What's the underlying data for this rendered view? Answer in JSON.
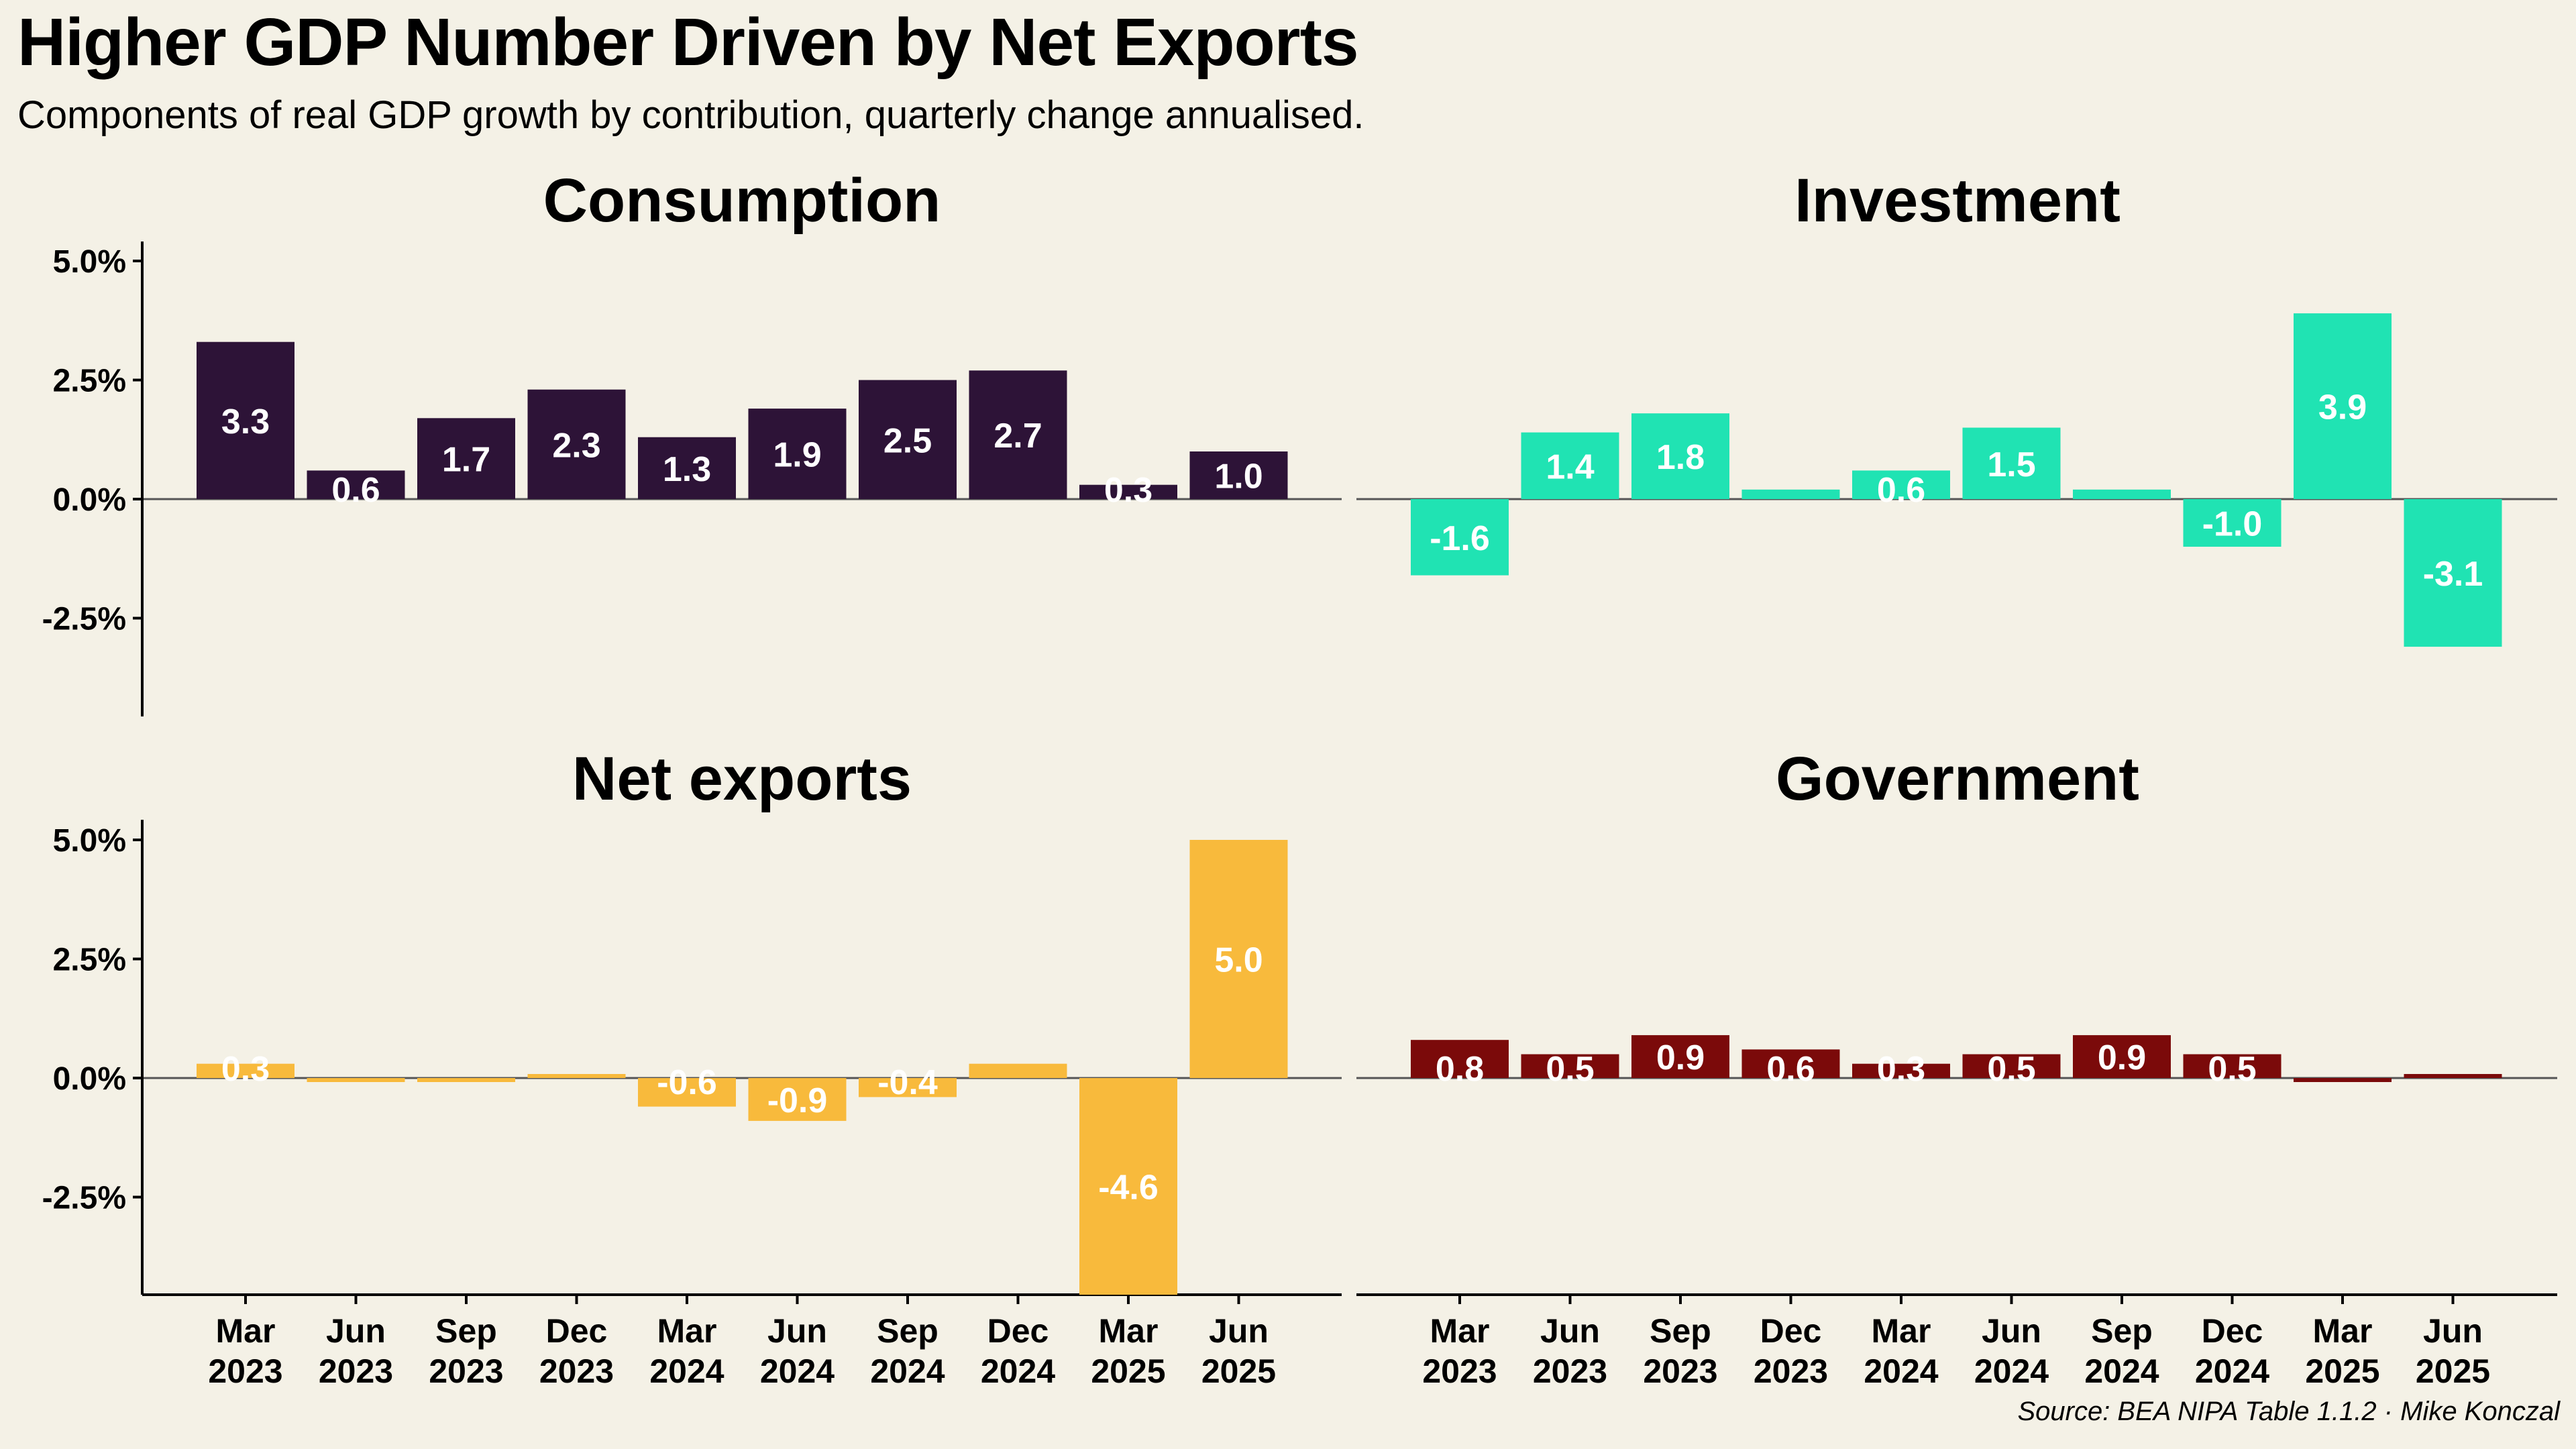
{
  "title": "Higher GDP Number Driven by Net Exports",
  "subtitle": "Components of real GDP growth by contribution, quarterly change annualised.",
  "source": "Source: BEA NIPA Table 1.1.2 · Mike Konczal",
  "colors": {
    "background": "#f4f1e6",
    "consumption": "#2d1337",
    "investment": "#20e3b3",
    "net_exports": "#f8ba3c",
    "government": "#7b0a0a"
  },
  "chart_data": [
    {
      "type": "bar",
      "title": "Consumption",
      "categories": [
        "Mar 2023",
        "Jun 2023",
        "Sep 2023",
        "Dec 2023",
        "Mar 2024",
        "Jun 2024",
        "Sep 2024",
        "Dec 2024",
        "Mar 2025",
        "Jun 2025"
      ],
      "values": [
        3.3,
        0.6,
        1.7,
        2.3,
        1.3,
        1.9,
        2.5,
        2.7,
        0.3,
        1.0
      ],
      "labels": [
        "3.3",
        "0.6",
        "1.7",
        "2.3",
        "1.3",
        "1.9",
        "2.5",
        "2.7",
        "0.3",
        "1.0"
      ],
      "ylim": [
        -4.5,
        5.5
      ],
      "yticks": [
        "5.0%",
        "2.5%",
        "0.0%",
        "-2.5%"
      ],
      "ytick_values": [
        5,
        2.5,
        0,
        -2.5
      ],
      "color": "#2d1337"
    },
    {
      "type": "bar",
      "title": "Investment",
      "categories": [
        "Mar 2023",
        "Jun 2023",
        "Sep 2023",
        "Dec 2023",
        "Mar 2024",
        "Jun 2024",
        "Sep 2024",
        "Dec 2024",
        "Mar 2025",
        "Jun 2025"
      ],
      "values": [
        -1.6,
        1.4,
        1.8,
        0.2,
        0.6,
        1.5,
        0.2,
        -1.0,
        3.9,
        -3.1
      ],
      "labels": [
        "-1.6",
        "1.4",
        "1.8",
        "",
        "0.6",
        "1.5",
        "",
        "-1.0",
        "3.9",
        "-3.1"
      ],
      "ylim": [
        -4.5,
        5.5
      ],
      "color": "#20e3b3"
    },
    {
      "type": "bar",
      "title": "Net exports",
      "categories": [
        "Mar 2023",
        "Jun 2023",
        "Sep 2023",
        "Dec 2023",
        "Mar 2024",
        "Jun 2024",
        "Sep 2024",
        "Dec 2024",
        "Mar 2025",
        "Jun 2025"
      ],
      "values": [
        0.3,
        -0.1,
        -0.1,
        0.1,
        -0.6,
        -0.9,
        -0.4,
        0.3,
        -4.6,
        5.0
      ],
      "labels": [
        "0.3",
        "",
        "",
        "",
        "-0.6",
        "-0.9",
        "-0.4",
        "",
        "-4.6",
        "5.0"
      ],
      "ylim": [
        -4.5,
        5.5
      ],
      "yticks": [
        "5.0%",
        "2.5%",
        "0.0%",
        "-2.5%"
      ],
      "ytick_values": [
        5,
        2.5,
        0,
        -2.5
      ],
      "x_month_labels": [
        "Mar",
        "Jun",
        "Sep",
        "Dec",
        "Mar",
        "Jun",
        "Sep",
        "Dec",
        "Mar",
        "Jun"
      ],
      "x_year_labels": [
        "2023",
        "2023",
        "2023",
        "2023",
        "2024",
        "2024",
        "2024",
        "2024",
        "2025",
        "2025"
      ],
      "color": "#f8ba3c"
    },
    {
      "type": "bar",
      "title": "Government",
      "categories": [
        "Mar 2023",
        "Jun 2023",
        "Sep 2023",
        "Dec 2023",
        "Mar 2024",
        "Jun 2024",
        "Sep 2024",
        "Dec 2024",
        "Mar 2025",
        "Jun 2025"
      ],
      "values": [
        0.8,
        0.5,
        0.9,
        0.6,
        0.3,
        0.5,
        0.9,
        0.5,
        -0.1,
        0.1
      ],
      "labels": [
        "0.8",
        "0.5",
        "0.9",
        "0.6",
        "0.3",
        "0.5",
        "0.9",
        "0.5",
        "",
        ""
      ],
      "ylim": [
        -4.5,
        5.5
      ],
      "x_month_labels": [
        "Mar",
        "Jun",
        "Sep",
        "Dec",
        "Mar",
        "Jun",
        "Sep",
        "Dec",
        "Mar",
        "Jun"
      ],
      "x_year_labels": [
        "2023",
        "2023",
        "2023",
        "2023",
        "2024",
        "2024",
        "2024",
        "2024",
        "2025",
        "2025"
      ],
      "color": "#7b0a0a"
    }
  ]
}
